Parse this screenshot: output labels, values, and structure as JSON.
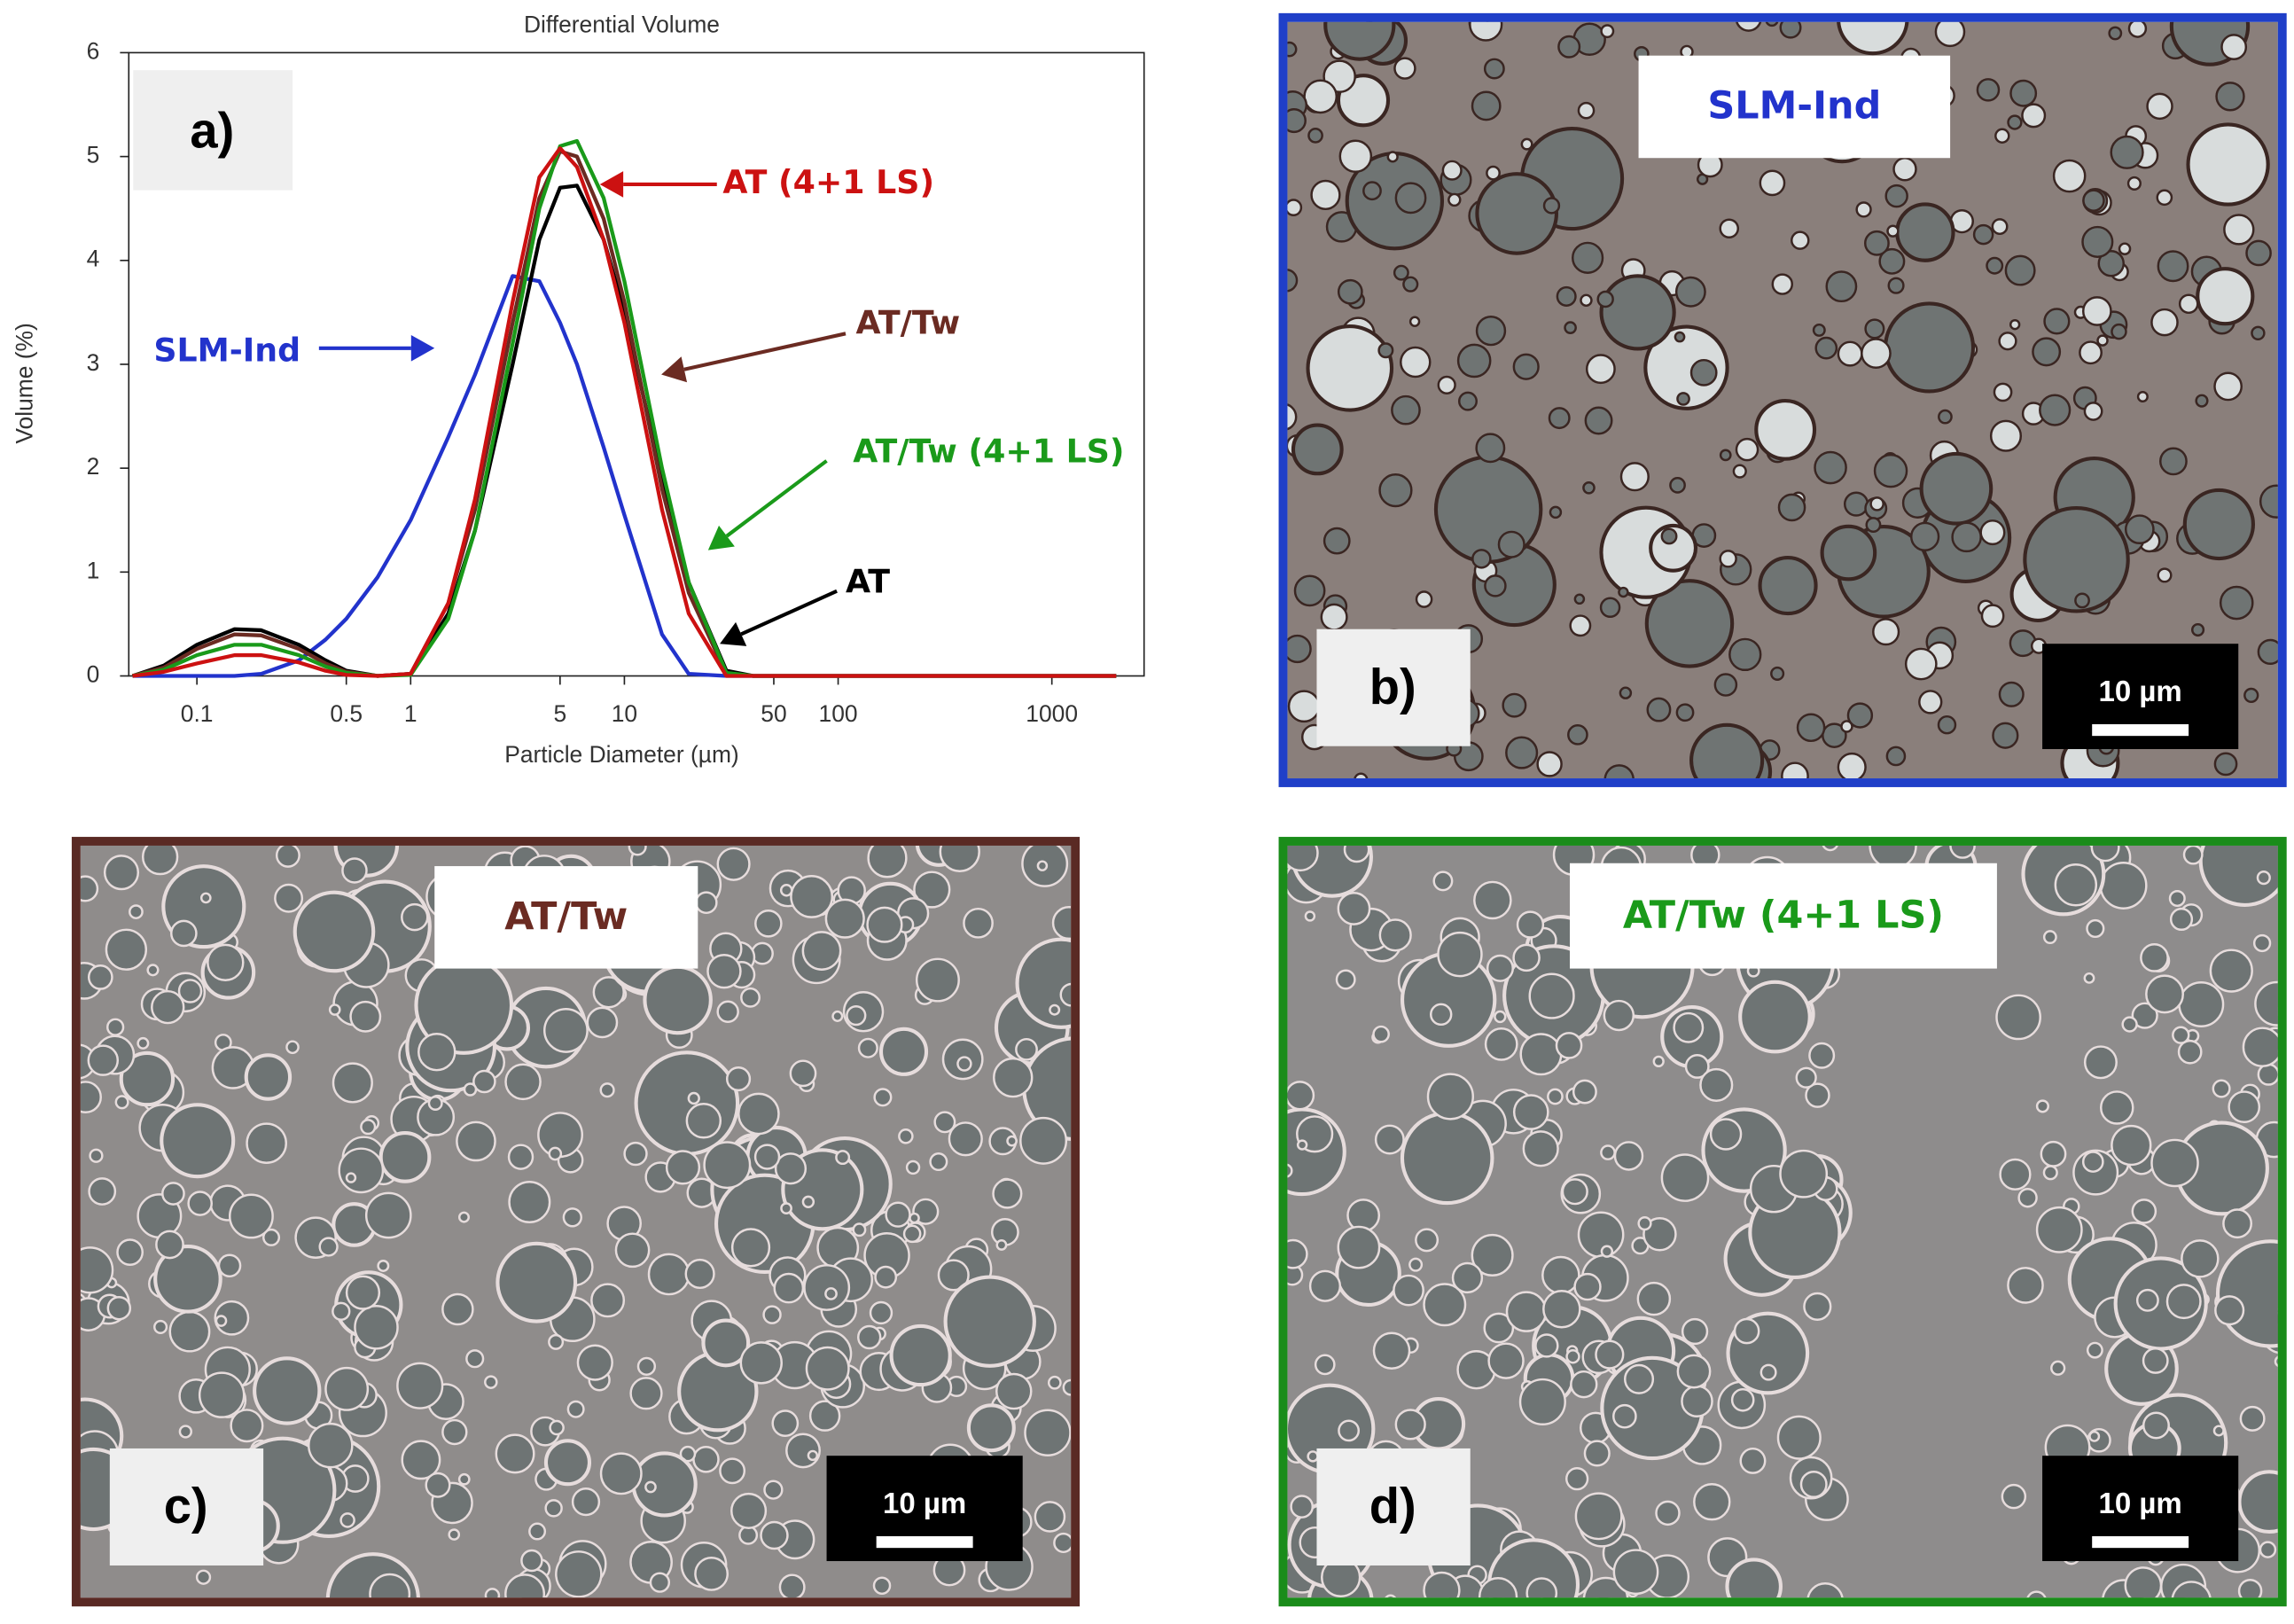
{
  "chart_data": {
    "type": "line",
    "title": "Differential Volume",
    "panel_label": "a)",
    "x_label": "Particle Diameter (µm)",
    "y_label": "Volume (%)",
    "log_x": true,
    "xlim": [
      0.048,
      2700
    ],
    "ylim": [
      0,
      6
    ],
    "xticks": [
      0.1,
      0.5,
      1,
      5,
      10,
      50,
      100,
      1000
    ],
    "yticks": [
      0,
      1,
      2,
      3,
      4,
      5,
      6
    ],
    "x": [
      0.05,
      0.07,
      0.1,
      0.15,
      0.2,
      0.3,
      0.4,
      0.5,
      0.7,
      1,
      1.5,
      2,
      3,
      4,
      5,
      6,
      8,
      10,
      15,
      20,
      30,
      40,
      50,
      100,
      1000,
      2000
    ],
    "series": [
      {
        "name": "SLM-Ind",
        "color": "#2233cc",
        "values": [
          0,
          0,
          0,
          0,
          0.02,
          0.15,
          0.35,
          0.55,
          0.95,
          1.5,
          2.3,
          2.9,
          3.85,
          3.8,
          3.4,
          3.0,
          2.2,
          1.55,
          0.4,
          0.02,
          0,
          0,
          0,
          0,
          0,
          0
        ]
      },
      {
        "name": "AT",
        "color": "#000000",
        "values": [
          0,
          0.1,
          0.3,
          0.45,
          0.44,
          0.3,
          0.15,
          0.05,
          0,
          0.02,
          0.6,
          1.4,
          3.0,
          4.2,
          4.7,
          4.72,
          4.2,
          3.5,
          1.9,
          0.9,
          0.05,
          0,
          0,
          0,
          0,
          0
        ]
      },
      {
        "name": "AT/Tw",
        "color": "#6b2b22",
        "values": [
          0,
          0.08,
          0.26,
          0.4,
          0.39,
          0.26,
          0.12,
          0.04,
          0,
          0.02,
          0.7,
          1.6,
          3.4,
          4.6,
          5.05,
          5.0,
          4.4,
          3.6,
          1.8,
          0.8,
          0.02,
          0,
          0,
          0,
          0,
          0
        ]
      },
      {
        "name": "AT/Tw (4+1 LS)",
        "color": "#1a9a1a",
        "values": [
          0,
          0.06,
          0.2,
          0.3,
          0.3,
          0.2,
          0.09,
          0.03,
          0,
          0.01,
          0.55,
          1.4,
          3.2,
          4.5,
          5.1,
          5.15,
          4.6,
          3.8,
          2.0,
          0.9,
          0.03,
          0,
          0,
          0,
          0,
          0
        ]
      },
      {
        "name": "AT (4+1 LS)",
        "color": "#cc1111",
        "values": [
          0,
          0.04,
          0.12,
          0.2,
          0.2,
          0.13,
          0.05,
          0.01,
          0,
          0.02,
          0.7,
          1.7,
          3.6,
          4.8,
          5.08,
          4.9,
          4.2,
          3.4,
          1.6,
          0.6,
          0,
          0,
          0,
          0,
          0,
          0
        ]
      }
    ]
  },
  "panels": [
    {
      "letter": "b)",
      "label": "SLM-Ind",
      "scale": "10 µm"
    },
    {
      "letter": "c)",
      "label": "AT/Tw",
      "scale": "10 µm"
    },
    {
      "letter": "d)",
      "label": "AT/Tw (4+1 LS)",
      "scale": "10 µm"
    }
  ]
}
